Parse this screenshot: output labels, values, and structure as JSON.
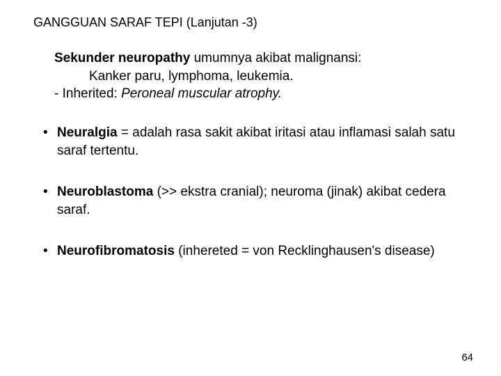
{
  "title": "GANGGUAN SARAF TEPI (Lanjutan -3)",
  "para1": {
    "lead_bold": "Sekunder neuropathy",
    "lead_rest": " umumnya akibat malignansi:",
    "line2": "Kanker paru, lymphoma, leukemia.",
    "line3_dash": "-   Inherited: ",
    "line3_italic": "Peroneal muscular atrophy."
  },
  "bullets": {
    "b1": {
      "bold": "Neuralgia",
      "rest": " = adalah rasa sakit akibat iritasi atau inflamasi salah satu saraf  tertentu."
    },
    "b2": {
      "bold": "Neuroblastoma",
      "rest": " (>> ekstra cranial); neuroma (jinak) akibat cedera saraf."
    },
    "b3": {
      "bold": "Neurofibromatosis",
      "rest": " (inhereted = von Recklinghausen's disease)"
    }
  },
  "page_number": "64",
  "bullet_char": "•",
  "colors": {
    "text": "#000000",
    "background": "#ffffff"
  },
  "fontsize": {
    "title": 18,
    "body": 19,
    "pagenum": 15
  }
}
